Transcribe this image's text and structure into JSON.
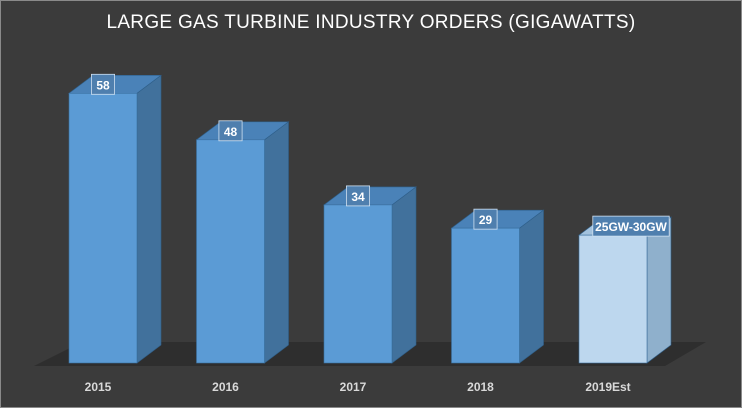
{
  "chart_data": {
    "type": "bar",
    "title": "LARGE GAS TURBINE INDUSTRY ORDERS (GIGAWATTS)",
    "categories": [
      "2015",
      "2016",
      "2017",
      "2018",
      "2019Est"
    ],
    "values": [
      58,
      48,
      34,
      29,
      27.5
    ],
    "data_labels": [
      "58",
      "48",
      "34",
      "29",
      "25GW-30GW"
    ],
    "xlabel": "",
    "ylabel": "",
    "grid": false,
    "legend": "none",
    "colors": {
      "background": "#3b3b3b",
      "bar_front": "#5b9bd5",
      "bar_side": "#41719c",
      "bar_top": "#4a82b8",
      "estimate_front": "#bdd7ee",
      "estimate_side": "#8fb0cc",
      "estimate_top": "#a3c2dd",
      "floor": "#2e2e2e"
    }
  }
}
